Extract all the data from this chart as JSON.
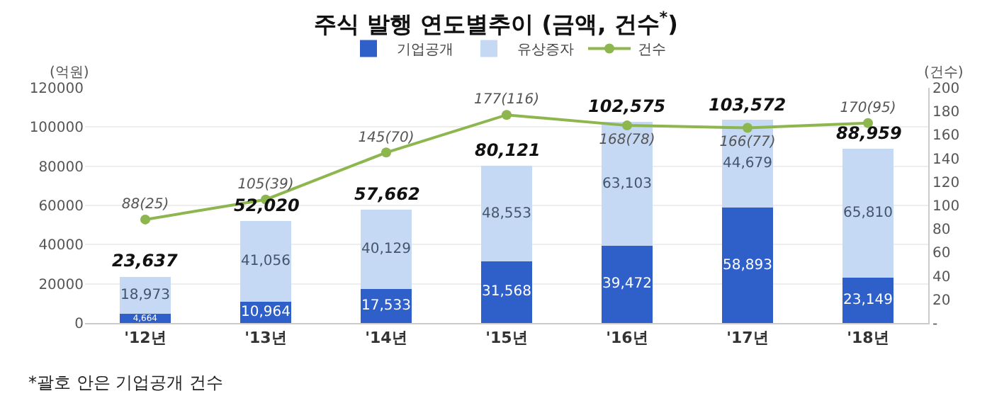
{
  "chart_data": {
    "type": "bar",
    "title": "주식 발행 연도별추이 (금액, 건수$^{*}$)",
    "ylabel": "(억원)",
    "y2label": "(건수)",
    "categories": [
      "'12년",
      "'13년",
      "'14년",
      "'15년",
      "'16년",
      "'17년",
      "'18년"
    ],
    "stacked": true,
    "series": [
      {
        "name": "기업공개",
        "color": "#2f5fc8",
        "values": [
          4664,
          10964,
          17533,
          31568,
          39472,
          58893,
          23149
        ],
        "value_labels": [
          "4,664",
          "10,964",
          "17,533",
          "31,568",
          "39,472",
          "58,893",
          "23,149"
        ]
      },
      {
        "name": "유상증자",
        "color": "#c5d8f4",
        "values": [
          18973,
          41056,
          40129,
          48553,
          63103,
          44679,
          65810
        ],
        "value_labels": [
          "18,973",
          "41,056",
          "40,129",
          "48,553",
          "63,103",
          "44,679",
          "65,810"
        ]
      },
      {
        "name": "건수",
        "type": "line",
        "axis": "y2",
        "color": "#8db64e",
        "marker": "circle",
        "values": [
          88,
          105,
          145,
          177,
          168,
          166,
          170
        ],
        "value_labels": [
          "88(25)",
          "105(39)",
          "145(70)",
          "177(116)",
          "168(78)",
          "166(77)",
          "170(95)"
        ]
      }
    ],
    "totals": [
      "23,637",
      "52,020",
      "57,662",
      "80,121",
      "102,575",
      "103,572",
      "88,959"
    ],
    "ylim": [
      0,
      120000
    ],
    "yticks": [
      0,
      20000,
      40000,
      60000,
      80000,
      100000,
      120000
    ],
    "y2lim": [
      0,
      200
    ],
    "y2ticks": [
      {
        "value": 0,
        "label": "-"
      },
      20,
      40,
      60,
      80,
      100,
      120,
      140,
      160,
      180,
      200
    ],
    "grid": "y",
    "legend": "top",
    "annotations": [
      "*괄호 안은 기업공개 건수"
    ]
  }
}
